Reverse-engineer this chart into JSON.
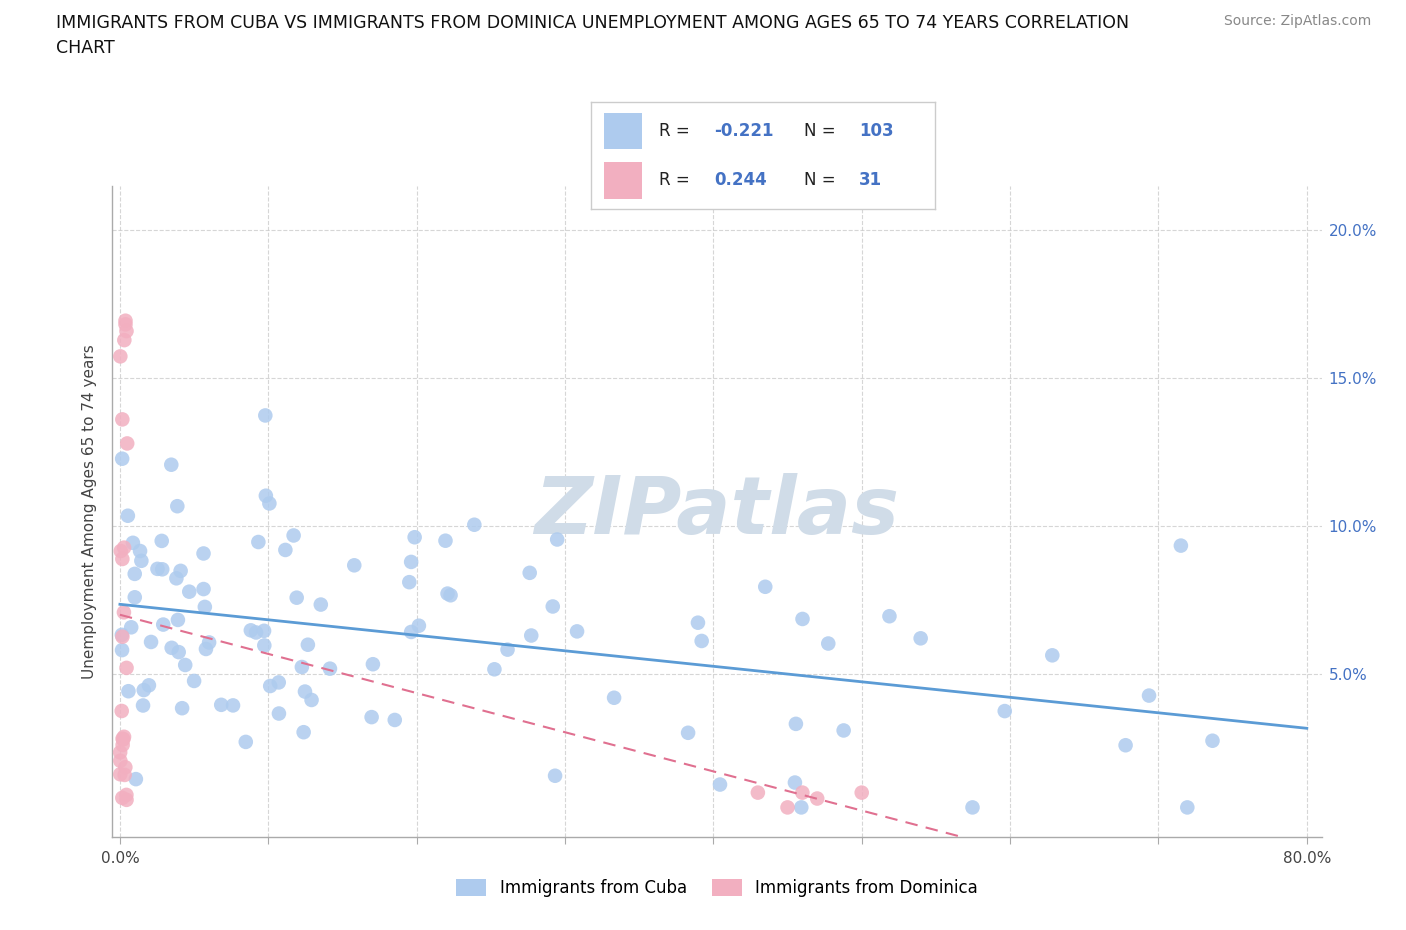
{
  "title": "IMMIGRANTS FROM CUBA VS IMMIGRANTS FROM DOMINICA UNEMPLOYMENT AMONG AGES 65 TO 74 YEARS CORRELATION\nCHART",
  "source_text": "Source: ZipAtlas.com",
  "ylabel": "Unemployment Among Ages 65 to 74 years",
  "legend_cuba_r": "-0.221",
  "legend_cuba_n": "103",
  "legend_dom_r": "0.244",
  "legend_dom_n": "31",
  "cuba_color": "#aecbee",
  "dominica_color": "#f2afc0",
  "cuba_line_color": "#5b9bd5",
  "dominica_line_color": "#e07090",
  "background_color": "#ffffff",
  "right_tick_color": "#4472c4",
  "watermark_text": "ZIPatlas",
  "watermark_color": "#d0dce8",
  "bottom_legend": [
    "Immigrants from Cuba",
    "Immigrants from Dominica"
  ]
}
